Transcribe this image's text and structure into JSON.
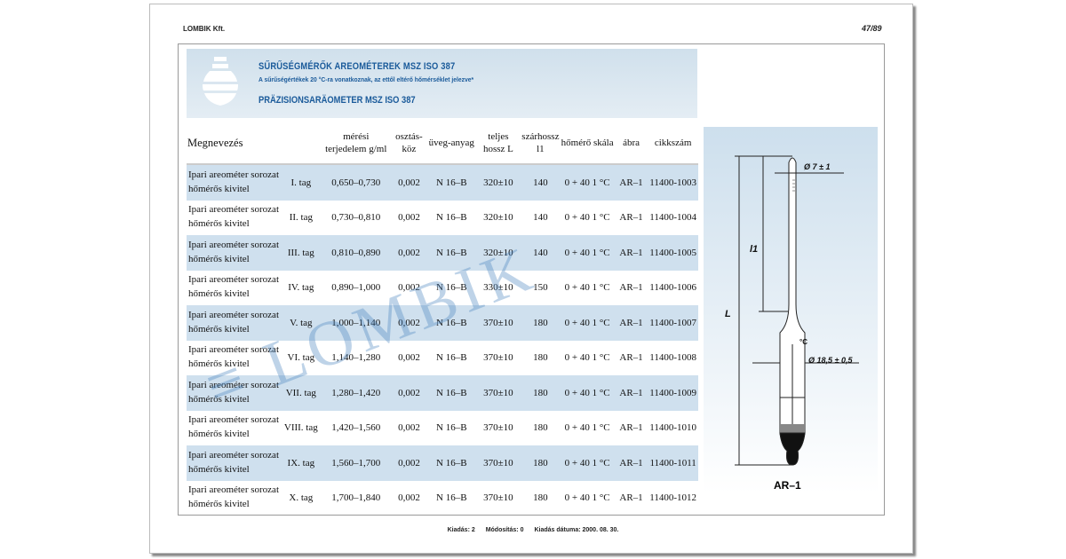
{
  "header": {
    "company": "LOMBIK Kft.",
    "page": "47/89"
  },
  "band": {
    "title": "SŰRŰSÉGMÉRŐK AREOMÉTEREK MSZ ISO 387",
    "subtitle": "A sűrűségértékek 20 °C-ra vonatkoznak, az ettől eltérő hőmérséklet jelezve*",
    "title_de": "PRÄZISIONSARÄOMETER MSZ ISO 387"
  },
  "table": {
    "headers": [
      "Megnevezés",
      "",
      "mérési terjedelem g/ml",
      "osztás-köz",
      "üveg-anyag",
      "teljes hossz L",
      "szárhossz l1",
      "hőmérő skála",
      "ábra",
      "cikkszám"
    ],
    "rows": [
      {
        "name1": "Ipari areométer sorozat",
        "name2": "hőmérős kivitel",
        "tag": "I. tag",
        "range": "0,650–0,730",
        "div": "0,002",
        "glass": "N 16–B",
        "L": "320±10",
        "l1": "140",
        "scale": "0 + 40  1 °C",
        "fig": "AR–1",
        "code": "11400-1003"
      },
      {
        "name1": "Ipari areométer sorozat",
        "name2": "hőmérős kivitel",
        "tag": "II. tag",
        "range": "0,730–0,810",
        "div": "0,002",
        "glass": "N 16–B",
        "L": "320±10",
        "l1": "140",
        "scale": "0 + 40  1 °C",
        "fig": "AR–1",
        "code": "11400-1004"
      },
      {
        "name1": "Ipari areométer sorozat",
        "name2": "hőmérős kivitel",
        "tag": "III. tag",
        "range": "0,810–0,890",
        "div": "0,002",
        "glass": "N 16–B",
        "L": "320±10",
        "l1": "140",
        "scale": "0 + 40  1 °C",
        "fig": "AR–1",
        "code": "11400-1005"
      },
      {
        "name1": "Ipari areométer sorozat",
        "name2": "hőmérős kivitel",
        "tag": "IV. tag",
        "range": "0,890–1,000",
        "div": "0,002",
        "glass": "N 16–B",
        "L": "330±10",
        "l1": "150",
        "scale": "0 + 40  1 °C",
        "fig": "AR–1",
        "code": "11400-1006"
      },
      {
        "name1": "Ipari areométer sorozat",
        "name2": "hőmérős kivitel",
        "tag": "V. tag",
        "range": "1,000–1,140",
        "div": "0,002",
        "glass": "N 16–B",
        "L": "370±10",
        "l1": "180",
        "scale": "0 + 40  1 °C",
        "fig": "AR–1",
        "code": "11400-1007"
      },
      {
        "name1": "Ipari areométer sorozat",
        "name2": "hőmérős kivitel",
        "tag": "VI. tag",
        "range": "1,140–1,280",
        "div": "0,002",
        "glass": "N 16–B",
        "L": "370±10",
        "l1": "180",
        "scale": "0 + 40  1 °C",
        "fig": "AR–1",
        "code": "11400-1008"
      },
      {
        "name1": "Ipari areométer sorozat",
        "name2": "hőmérős kivitel",
        "tag": "VII. tag",
        "range": "1,280–1,420",
        "div": "0,002",
        "glass": "N 16–B",
        "L": "370±10",
        "l1": "180",
        "scale": "0 + 40  1 °C",
        "fig": "AR–1",
        "code": "11400-1009"
      },
      {
        "name1": "Ipari areométer sorozat",
        "name2": "hőmérős kivitel",
        "tag": "VIII. tag",
        "range": "1,420–1,560",
        "div": "0,002",
        "glass": "N 16–B",
        "L": "370±10",
        "l1": "180",
        "scale": "0 + 40  1 °C",
        "fig": "AR–1",
        "code": "11400-1010"
      },
      {
        "name1": "Ipari areométer sorozat",
        "name2": "hőmérős kivitel",
        "tag": "IX. tag",
        "range": "1,560–1,700",
        "div": "0,002",
        "glass": "N 16–B",
        "L": "370±10",
        "l1": "180",
        "scale": "0 + 40  1 °C",
        "fig": "AR–1",
        "code": "11400-1011"
      },
      {
        "name1": "Ipari areométer sorozat",
        "name2": "hőmérős kivitel",
        "tag": "X. tag",
        "range": "1,700–1,840",
        "div": "0,002",
        "glass": "N 16–B",
        "L": "370±10",
        "l1": "180",
        "scale": "0 + 40  1 °C",
        "fig": "AR–1",
        "code": "11400-1012"
      }
    ]
  },
  "figure": {
    "label": "AR–1",
    "dim_top": "Ø 7 ± 1",
    "dim_body": "Ø 18,5 ± 0,5",
    "L": "L",
    "l1": "l1",
    "unit": "°C"
  },
  "watermark": "LOMBIK",
  "footer": {
    "edition": "Kiadás: 2",
    "modification": "Módosítás: 0",
    "date": "Kiadás dátuma: 2000. 08. 30."
  },
  "colors": {
    "accent": "#1a5a9a",
    "row_alt": "#cfe0ee"
  }
}
